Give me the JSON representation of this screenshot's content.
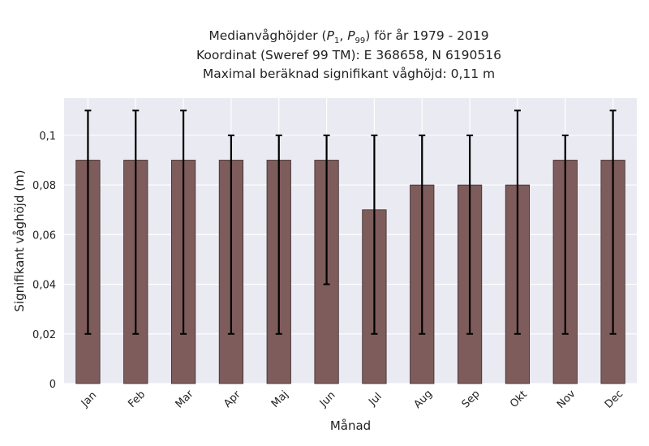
{
  "chart_data": {
    "type": "bar",
    "title_lines": [
      {
        "before": "Medianvåghöjder (",
        "p1": "P",
        "p1_sub": "1",
        "sep": ", ",
        "p2": "P",
        "p2_sub": "99",
        "after": ") för år 1979 - 2019"
      },
      {
        "text": "Koordinat (Sweref 99 TM): E 368658, N 6190516"
      },
      {
        "text": "Maximal beräknad signifikant våghöjd: 0,11 m"
      }
    ],
    "xlabel": "Månad",
    "ylabel": "Signifikant våghöjd (m)",
    "ylim": [
      0,
      0.115
    ],
    "yticks": [
      0,
      0.02,
      0.04,
      0.06,
      0.08,
      0.1
    ],
    "ytick_labels": [
      "0",
      "0,02",
      "0,04",
      "0,06",
      "0,08",
      "0,1"
    ],
    "grid": true,
    "categories": [
      "Jan",
      "Feb",
      "Mar",
      "Apr",
      "Maj",
      "Jun",
      "Jul",
      "Aug",
      "Sep",
      "Okt",
      "Nov",
      "Dec"
    ],
    "values": [
      0.09,
      0.09,
      0.09,
      0.09,
      0.09,
      0.09,
      0.07,
      0.08,
      0.08,
      0.08,
      0.09,
      0.09
    ],
    "error_low": [
      0.02,
      0.02,
      0.02,
      0.02,
      0.02,
      0.04,
      0.02,
      0.02,
      0.02,
      0.02,
      0.02,
      0.02
    ],
    "error_high": [
      0.11,
      0.11,
      0.11,
      0.1,
      0.1,
      0.1,
      0.1,
      0.1,
      0.1,
      0.11,
      0.1,
      0.11
    ],
    "colors": {
      "bar": "#7d5c5b",
      "bar_edge": "#3a2a2a",
      "plot_bg": "#eaeaf2",
      "grid": "#ffffff",
      "error": "#000000"
    }
  }
}
